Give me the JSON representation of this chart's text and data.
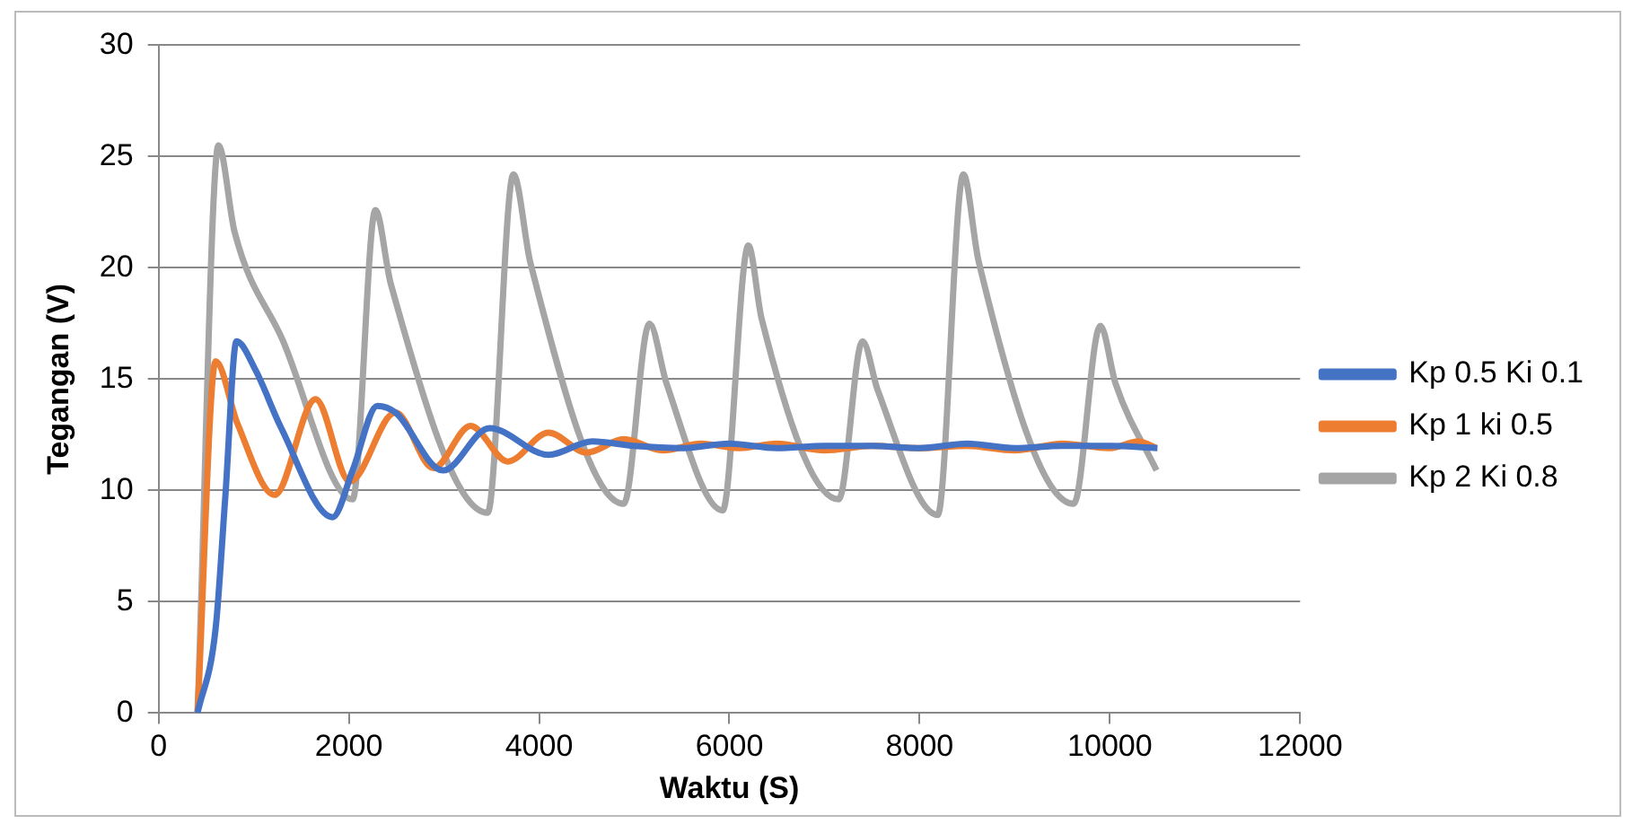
{
  "chart_data": {
    "type": "line",
    "xlabel": "Waktu (S)",
    "ylabel": "Tegangan (V)",
    "xlim": [
      0,
      12000
    ],
    "xticks": [
      0,
      2000,
      4000,
      6000,
      8000,
      10000,
      12000
    ],
    "ylim": [
      0,
      30
    ],
    "yticks": [
      0,
      5,
      10,
      15,
      20,
      25,
      30
    ],
    "grid": "y",
    "legend": "right",
    "marker": "none",
    "line_style": "solid",
    "series": [
      {
        "name": "Kp 0.5 Ki 0.1",
        "color": "#4472c4",
        "x": [
          410,
          600,
          700,
          820,
          1020,
          1290,
          1830,
          2040,
          2300,
          2490,
          2990,
          3480,
          4100,
          4560,
          5000,
          5500,
          6000,
          6500,
          7000,
          7500,
          8000,
          8500,
          9000,
          9500,
          10000,
          10500
        ],
        "values": [
          0,
          3.8,
          9.6,
          16.7,
          15.4,
          12.8,
          8.8,
          10.9,
          13.8,
          13.5,
          10.9,
          12.8,
          11.6,
          12.2,
          12,
          11.9,
          12.1,
          11.9,
          12,
          12,
          11.9,
          12.1,
          11.9,
          12,
          12,
          11.9
        ]
      },
      {
        "name": "Kp 1 ki 0.5",
        "color": "#ed7d31",
        "x": [
          410,
          600,
          830,
          1220,
          1650,
          2010,
          2490,
          2890,
          3280,
          3670,
          4100,
          4500,
          4890,
          5300,
          5700,
          6100,
          6500,
          7000,
          7500,
          8000,
          8500,
          9000,
          9500,
          10000,
          10300,
          10490
        ],
        "values": [
          0,
          15.8,
          13,
          9.8,
          14.1,
          10.4,
          13.5,
          11,
          12.9,
          11.3,
          12.6,
          11.7,
          12.3,
          11.8,
          12.1,
          11.9,
          12.1,
          11.8,
          12,
          11.9,
          12,
          11.8,
          12.1,
          11.9,
          12.2,
          11.9
        ]
      },
      {
        "name": "Kp 2 Ki 0.8",
        "color": "#a5a5a5",
        "x": [
          410,
          630,
          800,
          1300,
          2040,
          2280,
          2440,
          3460,
          3730,
          3910,
          4890,
          5160,
          5340,
          5930,
          6200,
          6340,
          7150,
          7400,
          7560,
          8190,
          8460,
          8620,
          9620,
          9900,
          10060,
          10490
        ],
        "values": [
          0,
          25.5,
          21.6,
          16.8,
          9.6,
          22.6,
          19.3,
          9,
          24.2,
          20.2,
          9.4,
          17.5,
          14.8,
          9.1,
          21,
          17.7,
          9.6,
          16.7,
          14.5,
          8.9,
          24.2,
          20.3,
          9.4,
          17.4,
          14.8,
          10.9
        ]
      }
    ]
  }
}
